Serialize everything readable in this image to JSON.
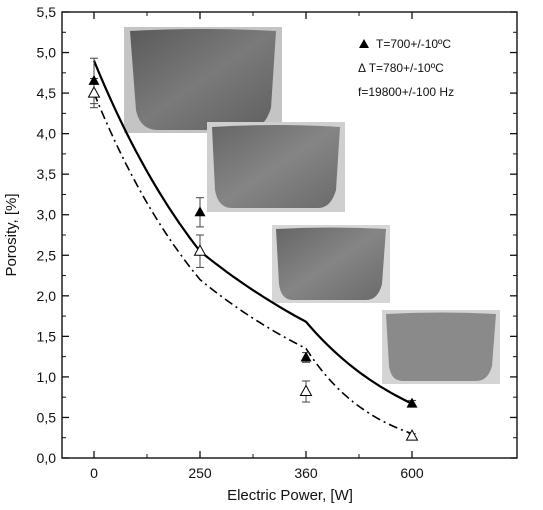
{
  "chart_data": {
    "type": "scatter",
    "xlabel": "Electric Power, [W]",
    "ylabel": "Porosity, [%]",
    "categories": [
      "0",
      "250",
      "360",
      "600"
    ],
    "ylim": [
      0.0,
      5.5
    ],
    "yticks": [
      "0,0",
      "0,5",
      "1,0",
      "1,5",
      "2,0",
      "2,5",
      "3,0",
      "3,5",
      "4,0",
      "4,5",
      "5,0",
      "5,5"
    ],
    "grid": false,
    "legend_position": "top-right",
    "series": [
      {
        "name": "T=700+/-10ºC",
        "marker": "filled-triangle",
        "line": "solid",
        "values": [
          4.65,
          3.03,
          1.24,
          0.67
        ],
        "error": [
          0.28,
          0.18,
          0.06,
          0.04
        ]
      },
      {
        "name": "Δ T=780+/-10ºC",
        "marker": "open-triangle",
        "line": "dash-dot",
        "values": [
          4.5,
          2.55,
          0.82,
          0.27
        ],
        "error": [
          0.18,
          0.2,
          0.13,
          0.03
        ]
      }
    ],
    "fit_curves": [
      {
        "series": 0,
        "values": [
          4.9,
          2.55,
          1.68,
          0.67
        ]
      },
      {
        "series": 1,
        "values": [
          4.5,
          2.2,
          1.35,
          0.3
        ]
      }
    ],
    "annotation": "f=19800+/-100 Hz",
    "colors": {
      "axis": "#111111",
      "series": "#000000",
      "background": "#ffffff",
      "inset_images": [
        "#6e6e6e",
        "#767676",
        "#7a7a7a",
        "#808080"
      ]
    }
  }
}
